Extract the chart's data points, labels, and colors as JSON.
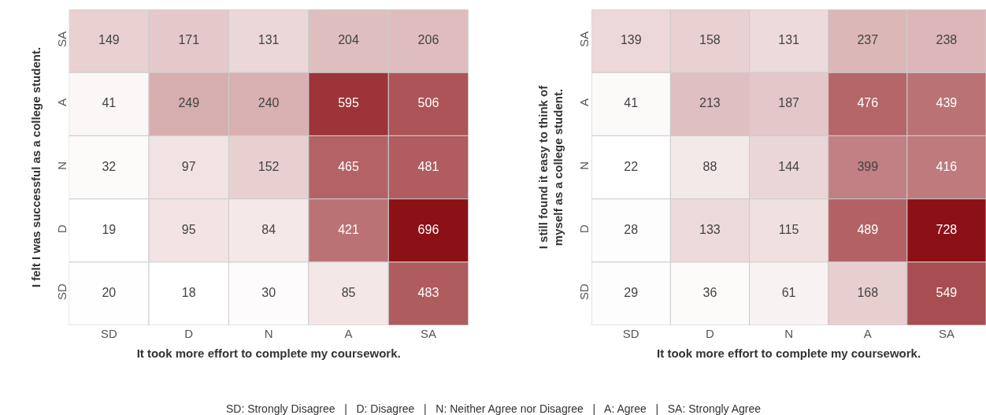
{
  "chart_data": [
    {
      "type": "heatmap",
      "xlabel": "It took more effort to complete my coursework.",
      "ylabel": "I felt I was successful as a college student.",
      "categories": [
        "SD",
        "D",
        "N",
        "A",
        "SA"
      ],
      "y_categories": [
        "SA",
        "A",
        "N",
        "D",
        "SD"
      ],
      "cells": [
        [
          149,
          171,
          131,
          204,
          206
        ],
        [
          41,
          249,
          240,
          595,
          506
        ],
        [
          32,
          97,
          152,
          465,
          481
        ],
        [
          19,
          95,
          84,
          421,
          696
        ],
        [
          20,
          18,
          30,
          85,
          483
        ]
      ],
      "color": "#8b1116",
      "data_labels": true,
      "annotations": [
        "SD: Strongly Disagree   |   D: Disagree   |   N: Neither Agree nor Disagree   |   A: Agree   |   SA: Strongly Agree"
      ]
    },
    {
      "type": "heatmap",
      "xlabel": "It took more effort to complete my coursework.",
      "ylabel": "I still found it easy to think of\nmyself as a college student.",
      "categories": [
        "SD",
        "D",
        "N",
        "A",
        "SA"
      ],
      "y_categories": [
        "SA",
        "A",
        "N",
        "D",
        "SD"
      ],
      "cells": [
        [
          139,
          158,
          131,
          237,
          238
        ],
        [
          41,
          213,
          187,
          476,
          439
        ],
        [
          22,
          88,
          144,
          399,
          416
        ],
        [
          28,
          133,
          115,
          489,
          728
        ],
        [
          29,
          36,
          61,
          168,
          549
        ]
      ],
      "color": "#8b1116",
      "data_labels": true
    }
  ]
}
